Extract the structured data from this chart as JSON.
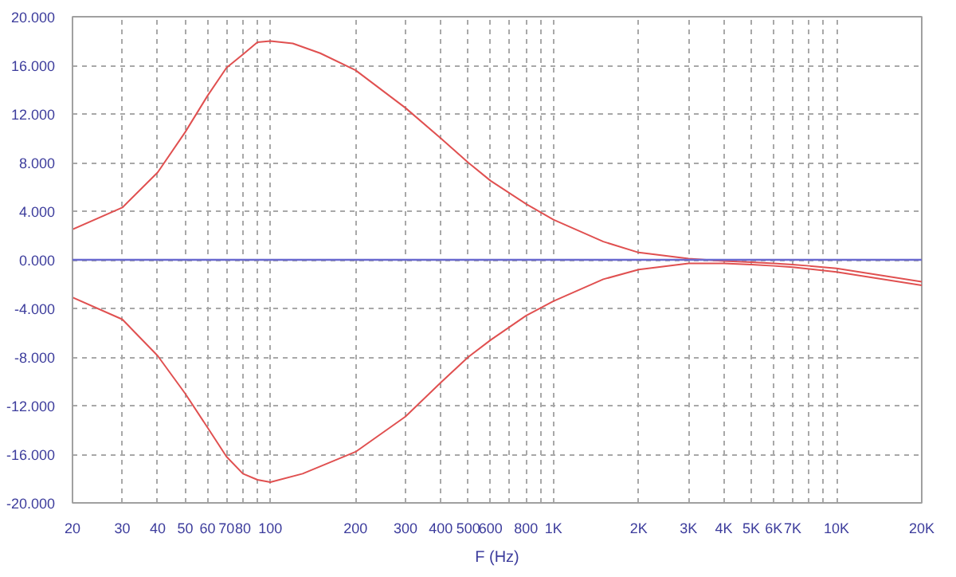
{
  "chart_data": {
    "type": "line",
    "xlabel": "F (Hz)",
    "log": "x",
    "grid": true,
    "line_style": "solid",
    "marker": "none",
    "xlim": [
      20,
      20000
    ],
    "ylim": [
      -20,
      20
    ],
    "xticks": [
      20,
      30,
      40,
      50,
      60,
      70,
      80,
      {
        "value": 90,
        "label": null
      },
      100,
      200,
      300,
      400,
      500,
      600,
      {
        "value": 700,
        "label": null
      },
      800,
      {
        "value": 900,
        "label": null
      },
      {
        "value": 1000,
        "label": "1K"
      },
      {
        "value": 2000,
        "label": "2K"
      },
      {
        "value": 3000,
        "label": "3K"
      },
      {
        "value": 4000,
        "label": "4K"
      },
      {
        "value": 5000,
        "label": "5K"
      },
      {
        "value": 6000,
        "label": "6K"
      },
      {
        "value": 7000,
        "label": "7K"
      },
      {
        "value": 8000,
        "label": null
      },
      {
        "value": 9000,
        "label": null
      },
      {
        "value": 10000,
        "label": "10K"
      },
      {
        "value": 20000,
        "label": "20K"
      }
    ],
    "yticks": [
      {
        "value": -20,
        "label": "-20.000"
      },
      {
        "value": -16,
        "label": "-16.000"
      },
      {
        "value": -12,
        "label": "-12.000"
      },
      {
        "value": -8,
        "label": "-8.000"
      },
      {
        "value": -4,
        "label": "-4.000"
      },
      {
        "value": 0,
        "label": "0.000"
      },
      {
        "value": 4,
        "label": "4.000"
      },
      {
        "value": 8,
        "label": "8.000"
      },
      {
        "value": 12,
        "label": "12.000"
      },
      {
        "value": 16,
        "label": "16.000"
      },
      {
        "value": 20,
        "label": "20.000"
      }
    ],
    "ref_lines": [
      {
        "axis": "y",
        "value": 0,
        "color": "#6a6ad0",
        "line_style": "solid"
      }
    ],
    "series": [
      {
        "color": "#e05050",
        "x": [
          20,
          30,
          40,
          50,
          60,
          70,
          80,
          90,
          100,
          120,
          150,
          200,
          300,
          400,
          500,
          600,
          800,
          1000,
          1500,
          2000,
          3000,
          4000,
          5000,
          6000,
          7000,
          8000,
          10000,
          20000
        ],
        "values": [
          2.5,
          4.3,
          7.2,
          10.5,
          13.5,
          15.8,
          16.9,
          17.9,
          18.0,
          17.8,
          17.0,
          15.6,
          12.5,
          10.0,
          8.0,
          6.5,
          4.6,
          3.3,
          1.5,
          0.6,
          0.1,
          -0.1,
          -0.2,
          -0.3,
          -0.4,
          -0.5,
          -0.7,
          -1.8
        ]
      },
      {
        "color": "#e05050",
        "x": [
          20,
          30,
          40,
          50,
          60,
          70,
          80,
          90,
          100,
          130,
          200,
          300,
          400,
          500,
          600,
          800,
          1000,
          1500,
          2000,
          3000,
          4000,
          5000,
          6000,
          7000,
          10000,
          20000
        ],
        "values": [
          -3.1,
          -4.9,
          -7.9,
          -11.0,
          -13.8,
          -16.2,
          -17.6,
          -18.1,
          -18.3,
          -17.6,
          -15.8,
          -12.9,
          -10.1,
          -8.0,
          -6.6,
          -4.6,
          -3.4,
          -1.6,
          -0.8,
          -0.3,
          -0.3,
          -0.4,
          -0.5,
          -0.6,
          -1.0,
          -2.1
        ]
      }
    ]
  }
}
